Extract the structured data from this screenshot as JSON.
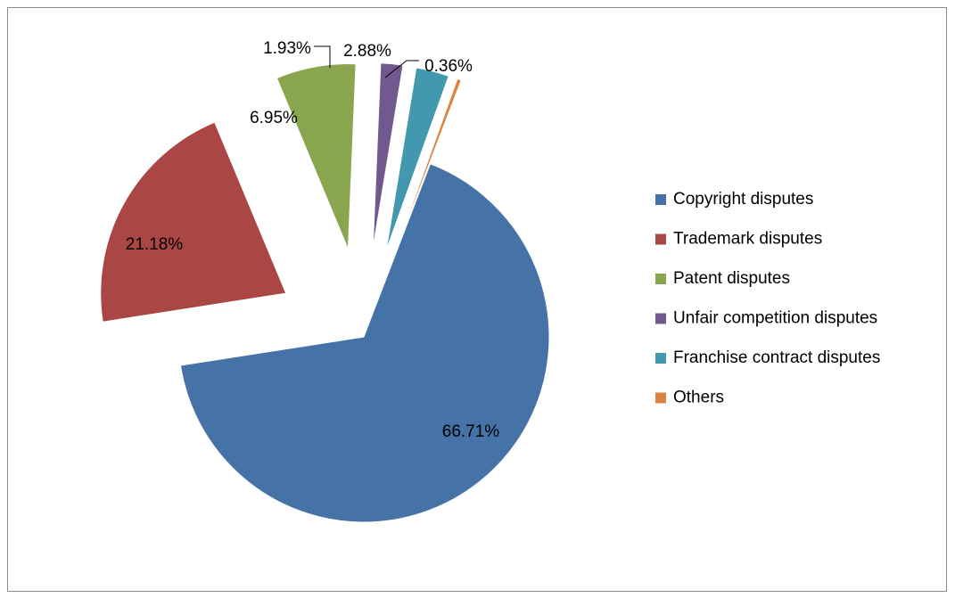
{
  "chart_data": {
    "type": "pie",
    "title": "",
    "legend_position": "right",
    "slices": [
      {
        "label": "Copyright disputes",
        "value": 66.71,
        "display": "66.71%",
        "color": "#4572A7"
      },
      {
        "label": "Trademark disputes",
        "value": 21.18,
        "display": "21.18%",
        "color": "#AA4643"
      },
      {
        "label": "Patent disputes",
        "value": 6.95,
        "display": "6.95%",
        "color": "#89A54E"
      },
      {
        "label": "Unfair competition disputes",
        "value": 1.93,
        "display": "1.93%",
        "color": "#71588F"
      },
      {
        "label": "Franchise contract disputes",
        "value": 2.88,
        "display": "2.88%",
        "color": "#4198AF"
      },
      {
        "label": "Others",
        "value": 0.36,
        "display": "0.36%",
        "color": "#DB843D"
      }
    ]
  }
}
